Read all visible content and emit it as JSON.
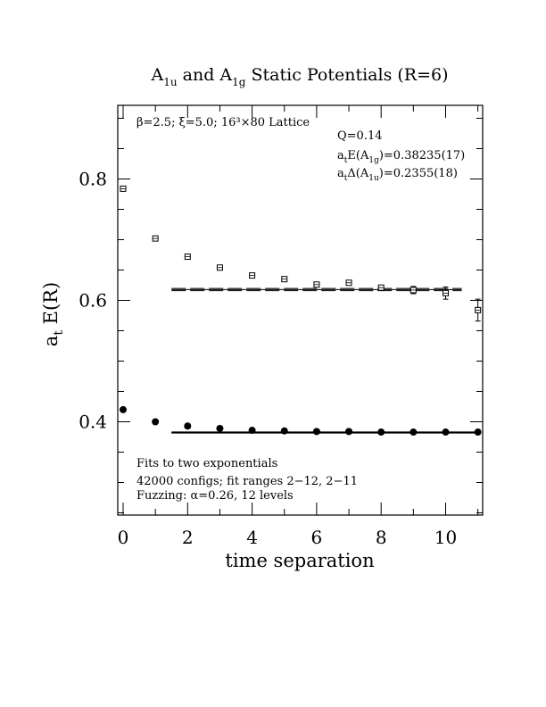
{
  "chart_data": {
    "type": "scatter",
    "title": {
      "p1": "A",
      "s1": "1u",
      "p2": " and A",
      "s2": "1g",
      "p3": " Static Potentials (R=6)"
    },
    "xlabel": "time separation",
    "ylabel": {
      "main": "a",
      "sub": "t",
      "rest": " E(R)"
    },
    "xlim": [
      -0.15,
      11.1
    ],
    "ylim": [
      0.255,
      0.925
    ],
    "xticks": [
      "0",
      "2",
      "4",
      "6",
      "8",
      "10"
    ],
    "yticks": [
      "0.4",
      "0.6",
      "0.8"
    ],
    "annotations": {
      "lattice": "β=2.5; ξ=5.0; 16³×80 Lattice",
      "q": "Q=0.14",
      "energy": {
        "pre": "a",
        "s1": "t",
        "mid": "E(A",
        "s2": "1g",
        "post": ")=0.38235(17)"
      },
      "gap": {
        "pre": "a",
        "s1": "t",
        "mid": "Δ(A",
        "s2": "1u",
        "post": ")=0.2355(18)"
      },
      "fits": "Fits to two exponentials",
      "configs": "42000 configs; fit ranges 2−12, 2−11",
      "fuzzing": "Fuzzing: α=0.26, 12 levels"
    },
    "series": [
      {
        "marker": "open-square",
        "x": [
          0,
          1,
          2,
          3,
          4,
          5,
          6,
          7,
          8,
          9,
          10,
          11
        ],
        "y": [
          0.784,
          0.702,
          0.672,
          0.654,
          0.641,
          0.635,
          0.626,
          0.629,
          0.621,
          0.617,
          0.612,
          0.584
        ],
        "err": [
          0.001,
          0.001,
          0.001,
          0.001,
          0.001,
          0.002,
          0.002,
          0.003,
          0.004,
          0.006,
          0.01,
          0.018
        ]
      },
      {
        "marker": "filled-circle",
        "x": [
          0,
          1,
          2,
          3,
          4,
          5,
          6,
          7,
          8,
          9,
          10,
          11
        ],
        "y": [
          0.42,
          0.4,
          0.393,
          0.389,
          0.386,
          0.385,
          0.384,
          0.384,
          0.383,
          0.383,
          0.383,
          0.383
        ],
        "err": [
          0,
          0,
          0,
          0,
          0,
          0,
          0,
          0,
          0,
          0,
          0,
          0
        ]
      }
    ],
    "fits": [
      {
        "y": 0.6178,
        "x_range": [
          1.5,
          10.5
        ],
        "band": 0.0018
      },
      {
        "y": 0.38235,
        "x_range": [
          1.5,
          11.0
        ],
        "band": 0.0002
      }
    ]
  }
}
